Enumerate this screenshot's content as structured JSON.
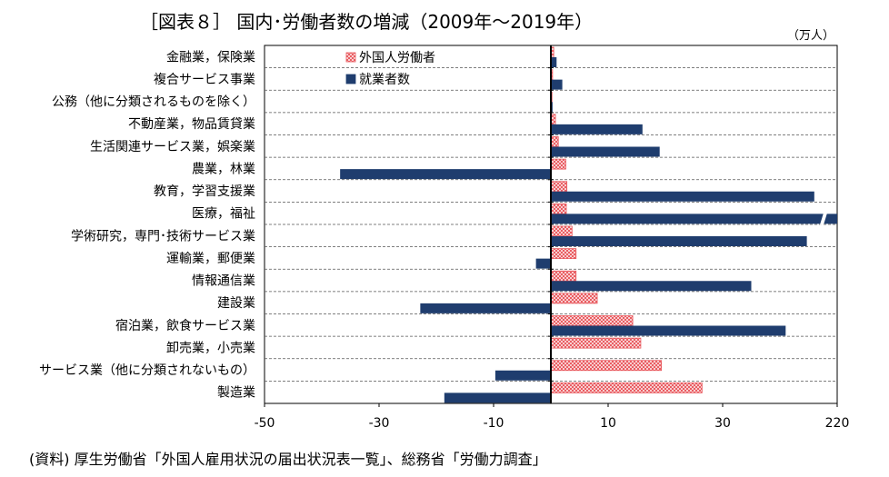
{
  "chart_data": {
    "type": "bar",
    "orientation": "horizontal",
    "title": "［図表８］ 国内･労働者数の増減（2009年～2019年）",
    "unit": "（万人）",
    "source": "(資料) 厚生労働省「外国人雇用状況の届出状況表一覧」、総務省「労働力調査」",
    "categories": [
      "金融業，保険業",
      "複合サービス事業",
      "公務（他に分類されるものを除く）",
      "不動産業，物品賃貸業",
      "生活関連サービス業，娯楽業",
      "農業，林業",
      "教育，学習支援業",
      "医療，福祉",
      "学術研究，専門･技術サービス業",
      "運輸業，郵便業",
      "情報通信業",
      "建設業",
      "宿泊業，飲食サービス業",
      "卸売業，小売業",
      "サービス業（他に分類されないもの）",
      "製造業"
    ],
    "series": [
      {
        "name": "外国人労働者",
        "color": "#e8555a",
        "pattern": "crosshatch",
        "values": [
          0.5,
          0.3,
          0.2,
          0.8,
          1.3,
          2.6,
          2.8,
          2.7,
          3.7,
          4.4,
          4.4,
          8.1,
          14.3,
          15.7,
          19.3,
          26.4
        ]
      },
      {
        "name": "就業者数",
        "color": "#1f3d6e",
        "pattern": "solid",
        "values": [
          1.0,
          2.0,
          0.3,
          16.0,
          19.0,
          -36.8,
          46.0,
          220.0,
          44.7,
          -2.6,
          35.0,
          -22.8,
          41.0,
          0.0,
          -9.7,
          -18.6
        ]
      }
    ],
    "x_ticks": [
      "-50",
      "-30",
      "-10",
      "10",
      "30",
      "220"
    ],
    "xlim": [
      -50,
      50
    ],
    "axis_break": {
      "value_label": "220",
      "broken_series": "就業者数",
      "broken_category": "医療，福祉"
    },
    "grid": {
      "horizontal_dashed": true,
      "vertical": false
    },
    "legend": {
      "position": "top-left"
    }
  }
}
